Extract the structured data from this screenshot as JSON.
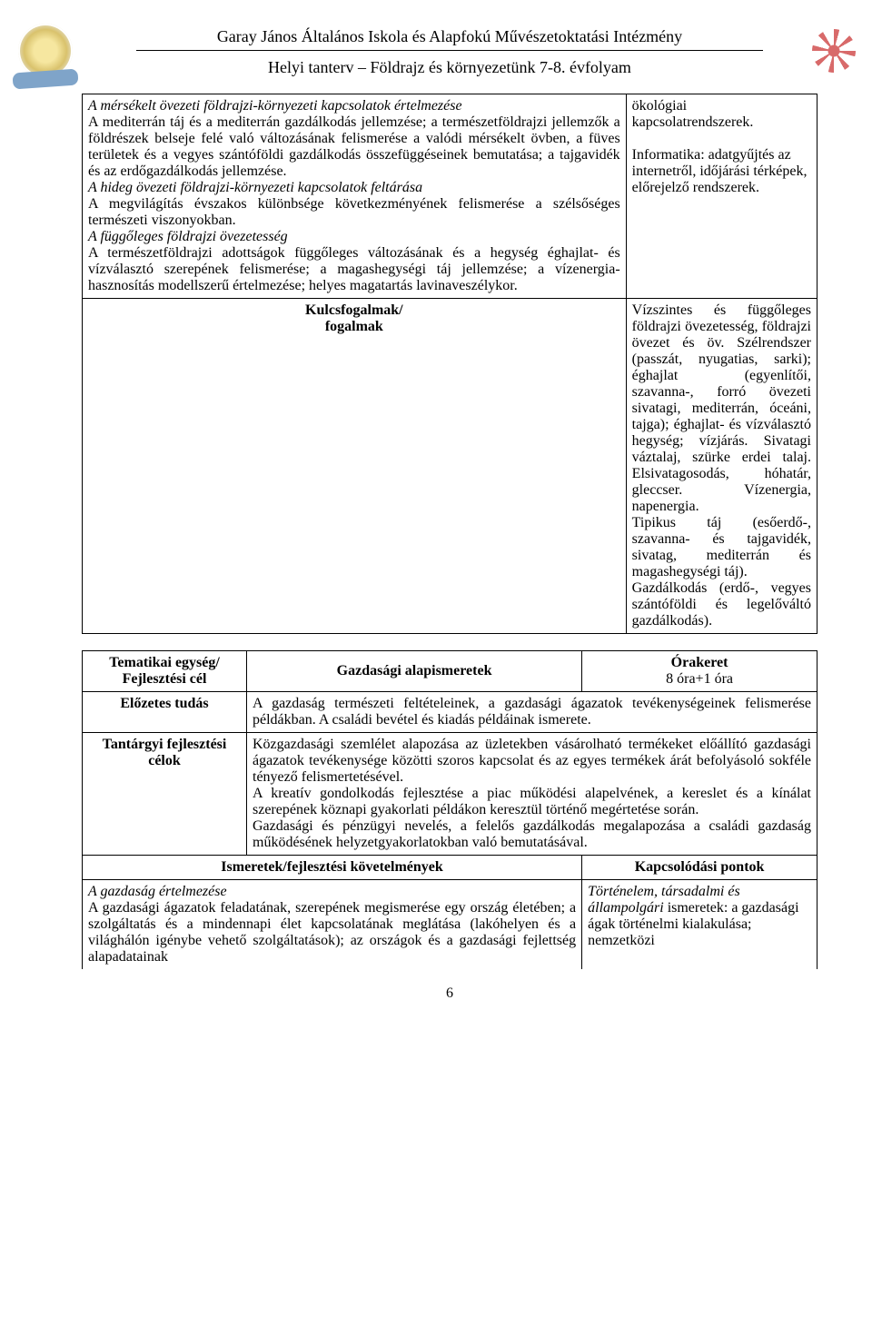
{
  "header": {
    "line1": "Garay János Általános Iskola és Alapfokú Művészetoktatási Intézmény",
    "line2": "Helyi tanterv – Földrajz és környezetünk 7-8. évfolyam"
  },
  "block1": {
    "leftParagraphs": [
      {
        "lead": "A mérsékelt övezeti földrajzi-környezeti kapcsolatok értelmezése",
        "leadItalic": true,
        "body": "A mediterrán táj és a mediterrán gazdálkodás jellemzése; a természetföldrajzi jellemzők a földrészek belseje felé való változásának felismerése a valódi mérsékelt övben, a füves területek és a vegyes szántóföldi gazdálkodás összefüggéseinek bemutatása; a tajgavidék és az erdőgazdálkodás jellemzése."
      },
      {
        "lead": "A hideg övezeti földrajzi-környezeti kapcsolatok feltárása",
        "leadItalic": true,
        "body": "A megvilágítás évszakos különbsége következményének felismerése a szélsőséges természeti viszonyokban."
      },
      {
        "lead": "A függőleges földrajzi övezetesség",
        "leadItalic": true,
        "body": "A természetföldrajzi adottságok függőleges változásának és a hegység éghajlat- és vízválasztó szerepének felismerése; a magashegységi táj jellemzése; a vízenergia-hasznosítás modellszerű értelmezése; helyes magatartás lavinaveszélykor."
      }
    ],
    "rightLines": [
      "ökológiai kapcsolatrendszerek.",
      "",
      "Informatika: adatgyűjtés az internetről, időjárási térképek, előrejelző rendszerek."
    ],
    "kulcsLabel": "Kulcsfogalmak/\nfogalmak",
    "kulcsText": "Vízszintes és függőleges földrajzi övezetesség, földrajzi övezet és öv. Szélrendszer (passzát, nyugatias, sarki); éghajlat (egyenlítői, szavanna-, forró övezeti sivatagi, mediterrán, óceáni, tajga); éghajlat- és vízválasztó hegység; vízjárás. Sivatagi váztalaj, szürke erdei talaj. Elsivatagosodás, hóhatár, gleccser. Vízenergia, napenergia.\nTipikus táj (esőerdő-, szavanna- és tajgavidék, sivatag, mediterrán és magashegységi táj).\nGazdálkodás (erdő-, vegyes szántóföldi és legelőváltó gazdálkodás)."
  },
  "block2": {
    "row1": {
      "c1": "Tematikai egység/\nFejlesztési cél",
      "c2": "Gazdasági alapismeretek",
      "c3a": "Órakeret",
      "c3b": "8 óra+1 óra"
    },
    "row2": {
      "label": "Előzetes tudás",
      "text": "A gazdaság természeti feltételeinek, a gazdasági ágazatok tevékenységeinek felismerése példákban. A családi bevétel és kiadás példáinak ismerete."
    },
    "row3": {
      "label": "Tantárgyi fejlesztési célok",
      "text": "Közgazdasági szemlélet alapozása az üzletekben vásárolható termékeket előállító gazdasági ágazatok tevékenysége közötti szoros kapcsolat és az egyes termékek árát befolyásoló sokféle tényező felismertetésével.\nA kreatív gondolkodás fejlesztése a piac működési alapelvének, a kereslet és a kínálat szerepének köznapi gyakorlati példákon keresztül történő megértetése során.\nGazdasági és pénzügyi nevelés, a felelős gazdálkodás megalapozása a családi gazdaság működésének helyzetgyakorlatokban való bemutatásával."
    },
    "row4": {
      "c1": "Ismeretek/fejlesztési követelmények",
      "c2": "Kapcsolódási pontok"
    },
    "row5": {
      "lead": "A gazdaság értelmezése",
      "body": "A gazdasági ágazatok feladatának, szerepének megismerése egy ország életében; a szolgáltatás és a mindennapi élet kapcsolatának meglátása (lakóhelyen és a világhálón igénybe vehető szolgáltatások); az országok és a gazdasági fejlettség alapadatainak",
      "rightLead": "Történelem, társadalmi és állampolgári",
      "rightBody": "ismeretek: a gazdasági ágak történelmi kialakulása; nemzetközi"
    }
  },
  "pageNumber": "6"
}
